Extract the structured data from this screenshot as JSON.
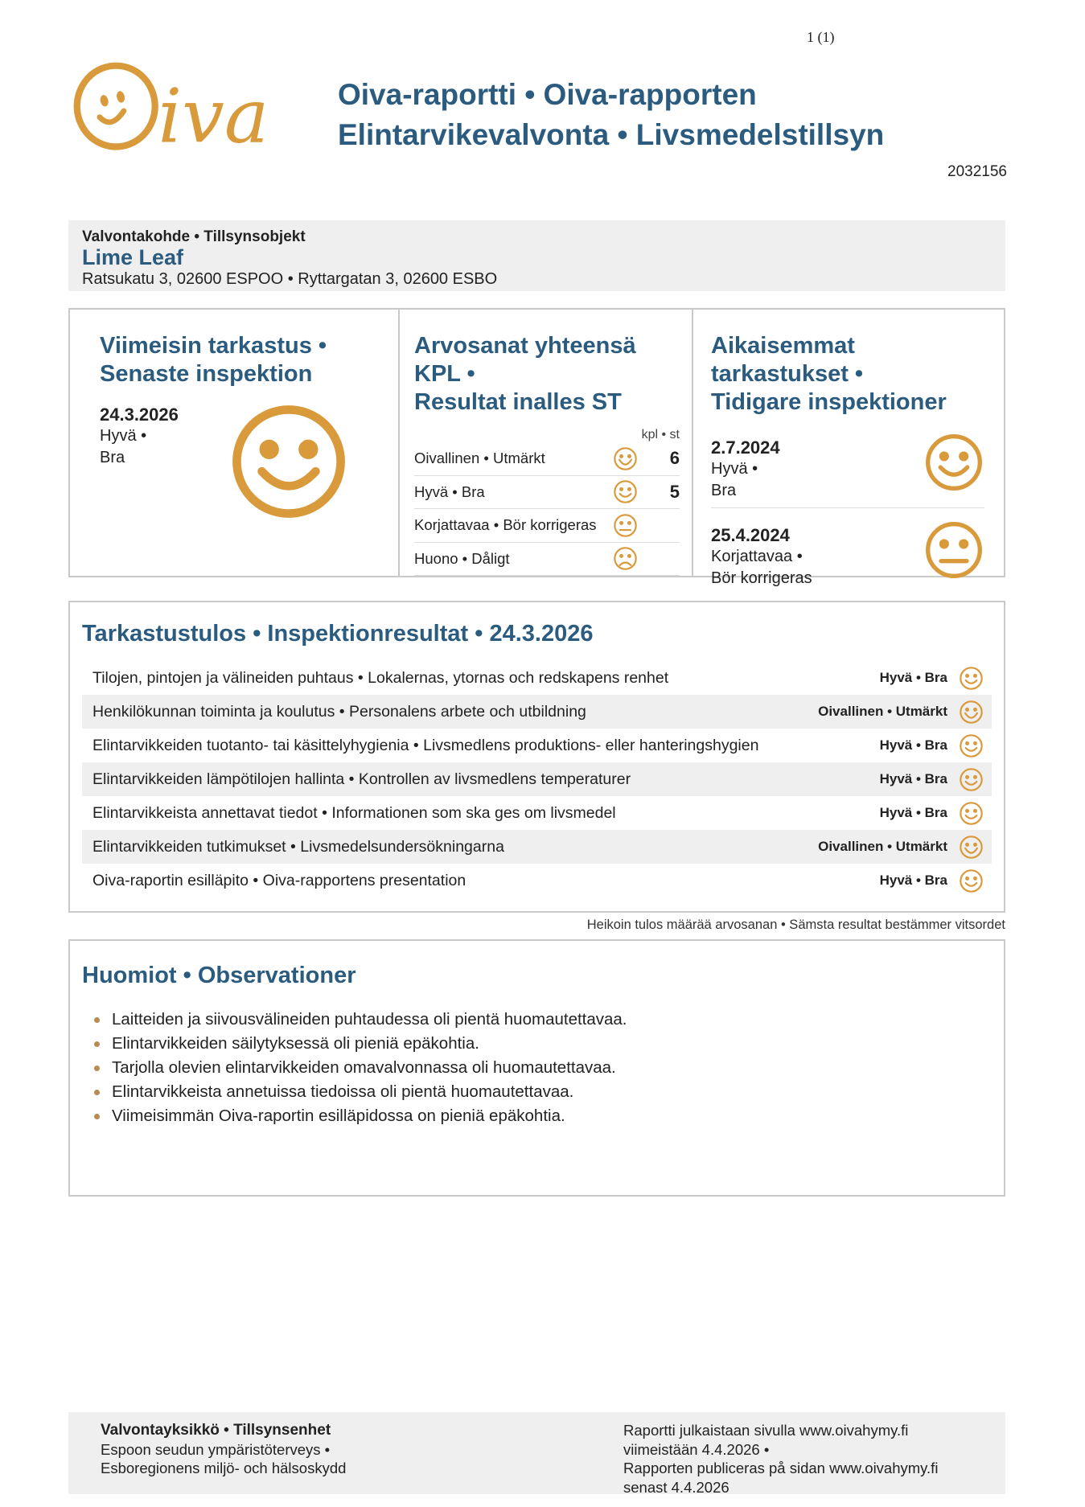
{
  "page": {
    "number": "1 (1)",
    "report_id": "2032156"
  },
  "header": {
    "logo_text": "iva",
    "title_line1": "Oiva-raportti • Oiva-rapporten",
    "title_line2": "Elintarvikevalvonta • Livsmedelstillsyn"
  },
  "colors": {
    "heading_teal": "#2b5b7e",
    "smiley_orange": "#d99a3c",
    "box_gray": "#efefef"
  },
  "target": {
    "label": "Valvontakohde • Tillsynsobjekt",
    "name": "Lime Leaf",
    "address": "Ratsukatu 3, 02600 ESPOO • Ryttargatan 3, 02600 ESBO"
  },
  "latest_inspection": {
    "heading_line1": "Viimeisin tarkastus •",
    "heading_line2": "Senaste inspektion",
    "date": "24.3.2026",
    "grade_line1": "Hyvä •",
    "grade_line2": "Bra",
    "face": "good"
  },
  "grade_totals": {
    "heading_line1": "Arvosanat yhteensä KPL •",
    "heading_line2": "Resultat inalles ST",
    "unit_label": "kpl • st",
    "rows": [
      {
        "label": "Oivallinen • Utmärkt",
        "face": "excellent",
        "count": "6"
      },
      {
        "label": "Hyvä • Bra",
        "face": "good",
        "count": "5"
      },
      {
        "label": "Korjattavaa • Bör korrigeras",
        "face": "neutral",
        "count": ""
      },
      {
        "label": "Huono • Dåligt",
        "face": "bad",
        "count": ""
      }
    ]
  },
  "previous_inspections": {
    "heading_line1": "Aikaisemmat tarkastukset •",
    "heading_line2": "Tidigare inspektioner",
    "items": [
      {
        "date": "2.7.2024",
        "grade_line1": "Hyvä •",
        "grade_line2": "Bra",
        "face": "good"
      },
      {
        "date": "25.4.2024",
        "grade_line1": "Korjattavaa •",
        "grade_line2": "Bör korrigeras",
        "face": "neutral"
      }
    ]
  },
  "results": {
    "heading": "Tarkastustulos • Inspektionresultat • 24.3.2026",
    "rows": [
      {
        "desc": "Tilojen, pintojen ja välineiden puhtaus • Lokalernas, ytornas och redskapens renhet",
        "grade": "Hyvä • Bra",
        "face": "good"
      },
      {
        "desc": "Henkilökunnan toiminta ja koulutus • Personalens arbete och utbildning",
        "grade": "Oivallinen • Utmärkt",
        "face": "excellent"
      },
      {
        "desc": "Elintarvikkeiden tuotanto- tai käsittelyhygienia • Livsmedlens produktions- eller hanteringshygien",
        "grade": "Hyvä • Bra",
        "face": "good"
      },
      {
        "desc": "Elintarvikkeiden lämpötilojen hallinta • Kontrollen av livsmedlens temperaturer",
        "grade": "Hyvä • Bra",
        "face": "good"
      },
      {
        "desc": "Elintarvikkeista annettavat tiedot • Informationen som ska ges om livsmedel",
        "grade": "Hyvä • Bra",
        "face": "good"
      },
      {
        "desc": "Elintarvikkeiden tutkimukset • Livsmedelsundersökningarna",
        "grade": "Oivallinen • Utmärkt",
        "face": "excellent"
      },
      {
        "desc": "Oiva-raportin esilläpito • Oiva-rapportens presentation",
        "grade": "Hyvä • Bra",
        "face": "good"
      }
    ],
    "footnote": "Heikoin tulos määrää arvosanan • Sämsta resultat bestämmer vitsordet"
  },
  "observations": {
    "heading": "Huomiot • Observationer",
    "items": [
      "Laitteiden ja siivousvälineiden puhtaudessa oli pientä huomautettavaa.",
      "Elintarvikkeiden säilytyksessä oli pieniä epäkohtia.",
      "Tarjolla olevien elintarvikkeiden omavalvonnassa oli huomautettavaa.",
      "Elintarvikkeista annetuissa tiedoissa oli pientä huomautettavaa.",
      "Viimeisimmän Oiva-raportin esilläpidossa on pieniä epäkohtia."
    ]
  },
  "footer": {
    "left": {
      "title": "Valvontayksikkö • Tillsynsenhet",
      "line1": "Espoon seudun ympäristöterveys •",
      "line2": "Esboregionens miljö- och hälsoskydd"
    },
    "right": {
      "line1": "Raportti julkaistaan sivulla www.oivahymy.fi",
      "line2": "viimeistään 4.4.2026 •",
      "line3": "Rapporten publiceras på sidan www.oivahymy.fi",
      "line4": "senast 4.4.2026"
    }
  }
}
